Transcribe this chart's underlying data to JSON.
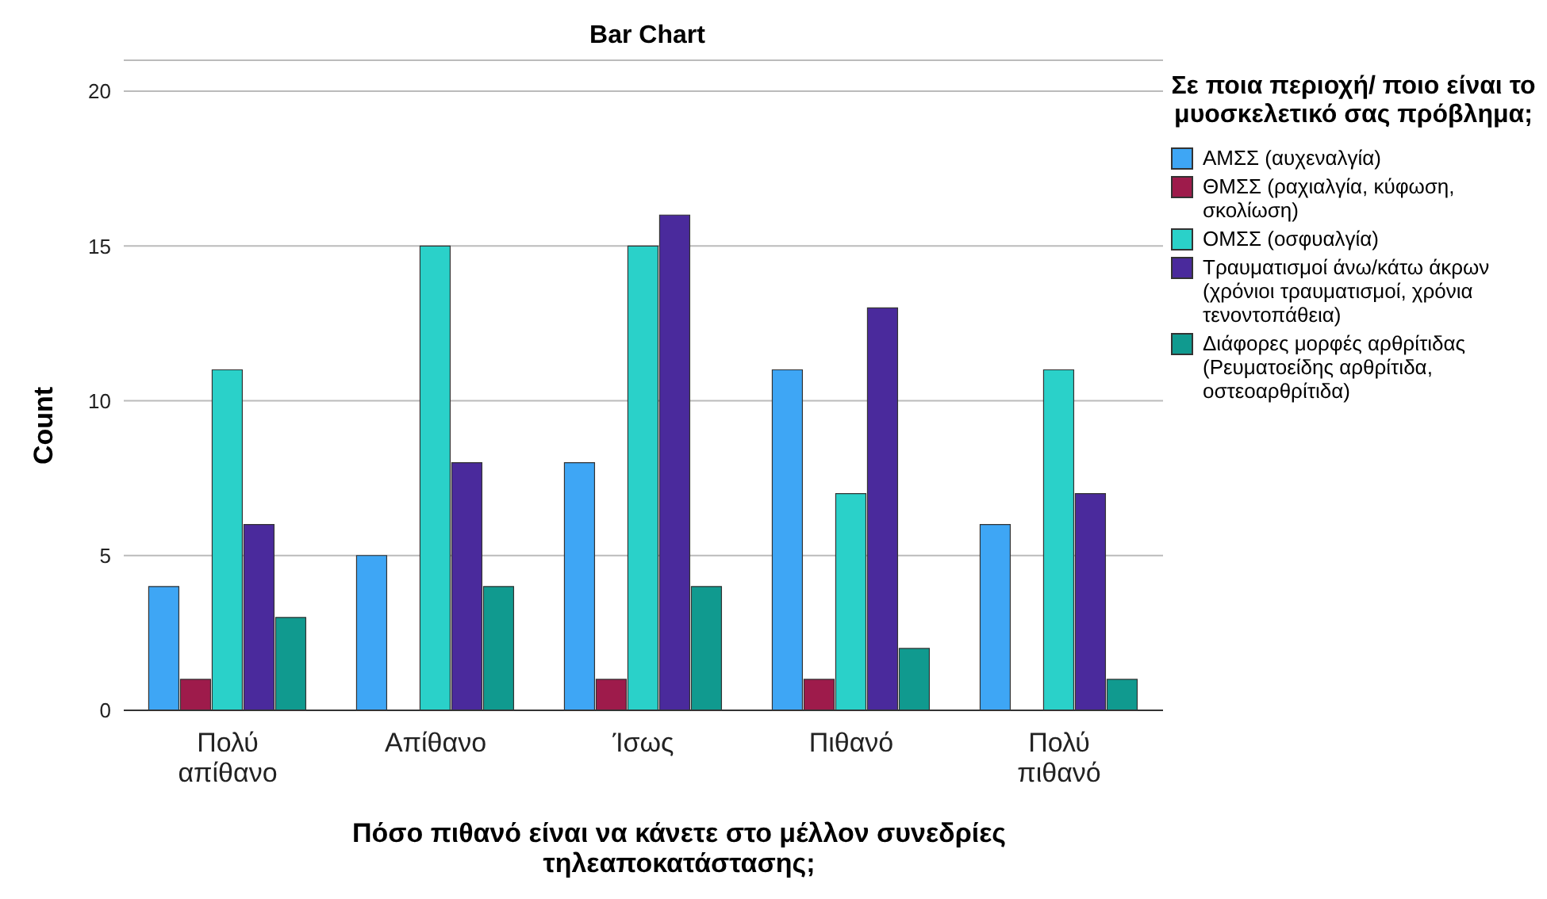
{
  "chart_data": {
    "type": "bar",
    "title": "Bar Chart",
    "xlabel": "Πόσο πιθανό είναι να κάνετε στο μέλλον συνεδρίες τηλεαποκατάστασης;",
    "ylabel": "Count",
    "legend_title": "Σε ποια περιοχή/ ποιο είναι το μυοσκελετικό σας πρόβλημα;",
    "categories": [
      "Πολύ απίθανο",
      "Απίθανο",
      "Ίσως",
      "Πιθανό",
      "Πολύ πιθανό"
    ],
    "series": [
      {
        "name": "ΑΜΣΣ (αυχεναλγία)",
        "color": "#3ea6f5",
        "values": [
          4,
          5,
          8,
          11,
          6
        ]
      },
      {
        "name": "ΘΜΣΣ (ραχιαλγία, κύφωση, σκολίωση)",
        "color": "#9e1b4b",
        "values": [
          1,
          null,
          1,
          1,
          null
        ]
      },
      {
        "name": "ΟΜΣΣ (οσφυαλγία)",
        "color": "#2ad1c9",
        "values": [
          11,
          15,
          15,
          7,
          11
        ]
      },
      {
        "name": "Τραυματισμοί άνω/κάτω άκρων (χρόνιοι τραυματισμοί, χρόνια τενοντοπάθεια)",
        "color": "#4a2a9c",
        "values": [
          6,
          8,
          16,
          13,
          7
        ]
      },
      {
        "name": "Διάφορες μορφές αρθρίτιδας (Ρευματοείδης αρθρίτιδα, οστεοαρθρίτιδα)",
        "color": "#109a8f",
        "values": [
          3,
          4,
          4,
          2,
          1
        ]
      }
    ],
    "ylim": [
      0,
      21
    ],
    "yticks": [
      0,
      5,
      10,
      15,
      20
    ],
    "grid": "y",
    "legend": "right"
  }
}
